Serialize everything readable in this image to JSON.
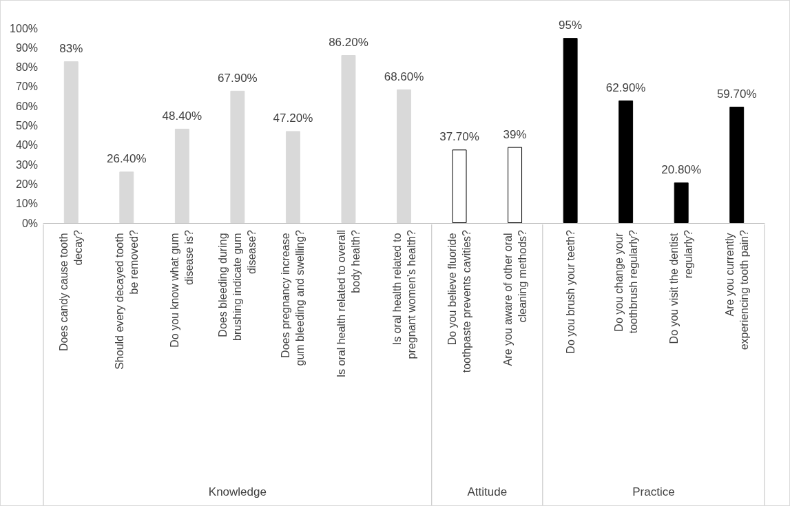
{
  "chart_data": {
    "type": "bar",
    "categories": [
      "Does candy cause tooth decay?",
      "Should every decayed tooth be removed?",
      "Do you know what gum disease is?",
      "Does bleeding during brushing indicate gum disease?",
      "Does pregnancy increase gum bleeding and swelling?",
      "Is oral health related to overall body health?",
      "Is oral health related to pregnant women’s health?",
      "Do you believe fluoride toothpaste prevents cavities?",
      "Are you aware of other oral cleaning methods?",
      "Do you brush your teeth?",
      "Do you change your toothbrush regularly?",
      "Do you visit the dentist regularly?",
      "Are you currently experiencing tooth pain?"
    ],
    "values": [
      83,
      26.4,
      48.4,
      67.9,
      47.2,
      86.2,
      68.6,
      37.7,
      39,
      95,
      62.9,
      20.8,
      59.7
    ],
    "value_labels": [
      "83%",
      "26.40%",
      "48.40%",
      "67.90%",
      "47.20%",
      "86.20%",
      "68.60%",
      "37.70%",
      "39%",
      "95%",
      "62.90%",
      "20.80%",
      "59.70%"
    ],
    "colors": [
      "#d9d9d9",
      "#d9d9d9",
      "#d9d9d9",
      "#d9d9d9",
      "#d9d9d9",
      "#d9d9d9",
      "#d9d9d9",
      "#ffffff",
      "#ffffff",
      "#000000",
      "#000000",
      "#000000",
      "#000000"
    ],
    "annotations": [
      "Knowledge",
      "Attitude",
      "Practice"
    ],
    "ylim": [
      0,
      100
    ],
    "yticks": [
      {
        "value": 0,
        "label": "0%"
      },
      {
        "value": 10,
        "label": "10%"
      },
      {
        "value": 20,
        "label": "20%"
      },
      {
        "value": 30,
        "label": "30%"
      },
      {
        "value": 40,
        "label": "40%"
      },
      {
        "value": 50,
        "label": "50%"
      },
      {
        "value": 60,
        "label": "60%"
      },
      {
        "value": 70,
        "label": "70%"
      },
      {
        "value": 80,
        "label": "80%"
      },
      {
        "value": 90,
        "label": "90%"
      },
      {
        "value": 100,
        "label": "100%"
      }
    ],
    "grid": false
  }
}
